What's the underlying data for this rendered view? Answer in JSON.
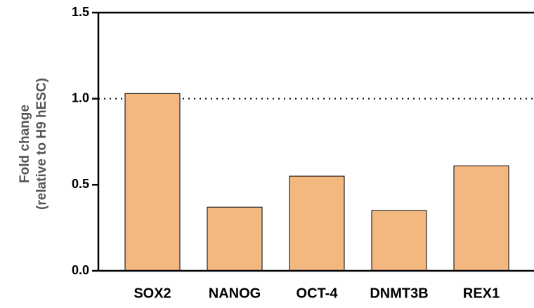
{
  "chart_data": {
    "type": "bar",
    "ylabel": [
      "Fold change",
      "(relative to H9 hESC)"
    ],
    "categories": [
      "SOX2",
      "NANOG",
      "OCT-4",
      "DNMT3B",
      "REX1"
    ],
    "values": [
      1.03,
      0.37,
      0.55,
      0.35,
      0.61
    ],
    "color": "#f2b880",
    "ylim": [
      0,
      1.5
    ],
    "yticks": [
      {
        "value": 0,
        "label": "0.0"
      },
      0.5,
      {
        "value": 1,
        "label": "1.0"
      },
      1.5
    ],
    "reference_line": 1,
    "grid": false
  }
}
